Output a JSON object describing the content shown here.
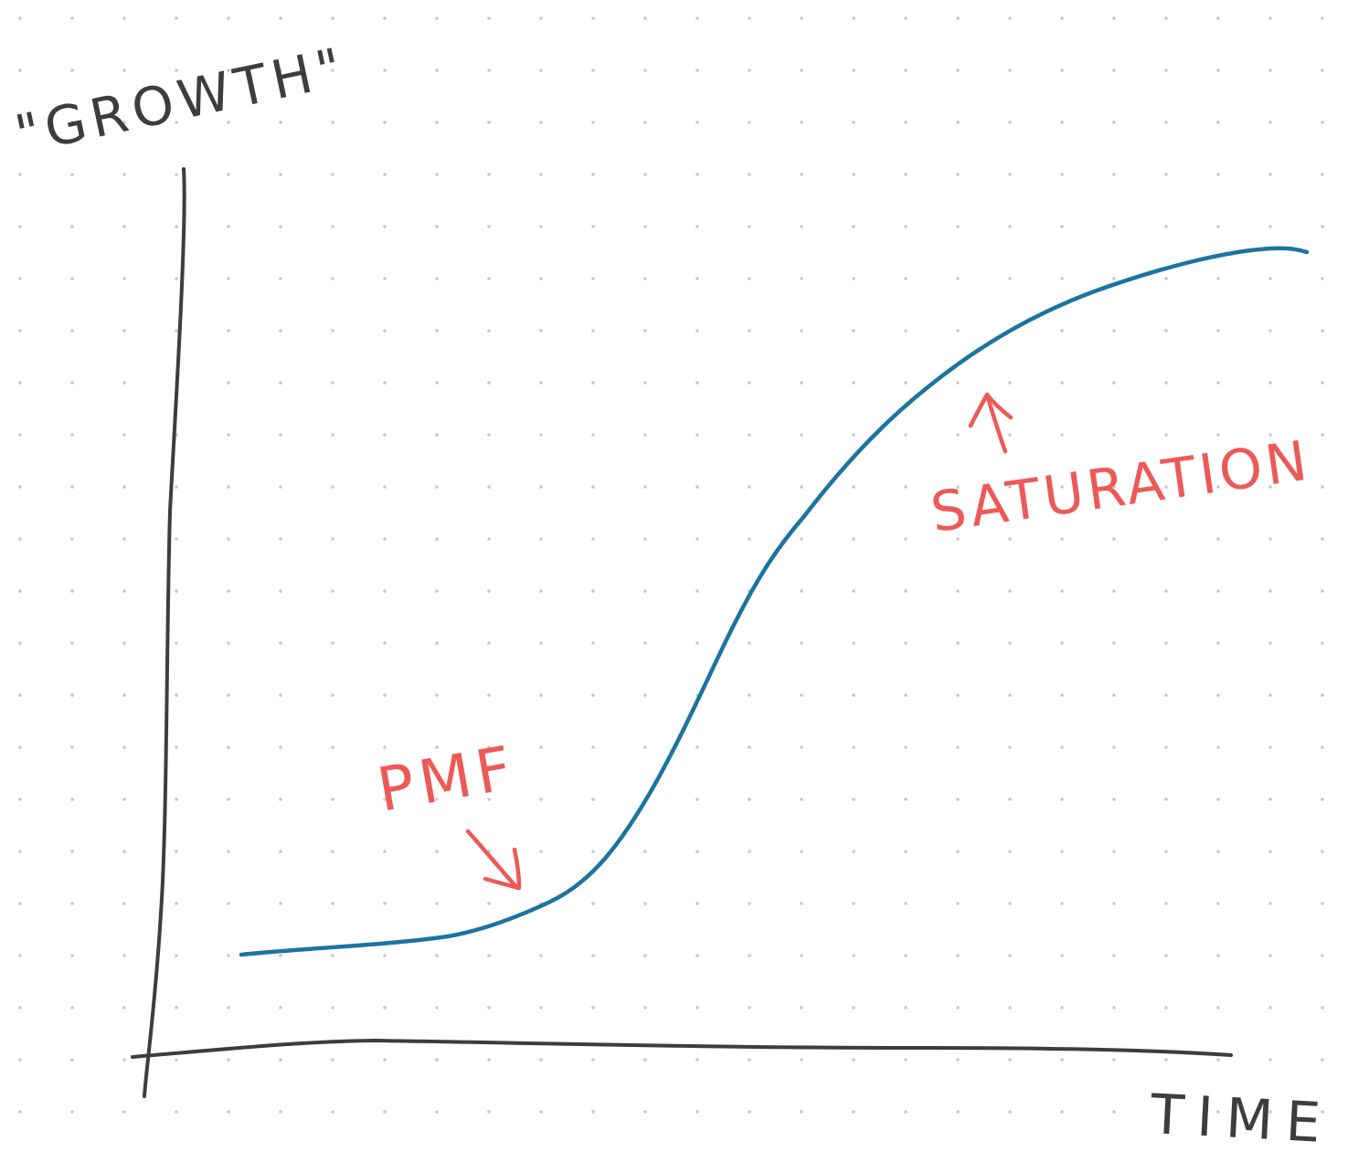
{
  "diagram": {
    "y_axis_label": "\"GROWTH\"",
    "x_axis_label": "TIME",
    "annotations": {
      "pmf": "PMF",
      "saturation": "SATURATION"
    },
    "colors": {
      "background": "#ffffff",
      "grid_dot": "#c8c8c8",
      "axis": "#3d3d3d",
      "curve": "#1b74a0",
      "annotation": "#ec5a57"
    },
    "grid": true,
    "curve_shape": "s-curve"
  }
}
